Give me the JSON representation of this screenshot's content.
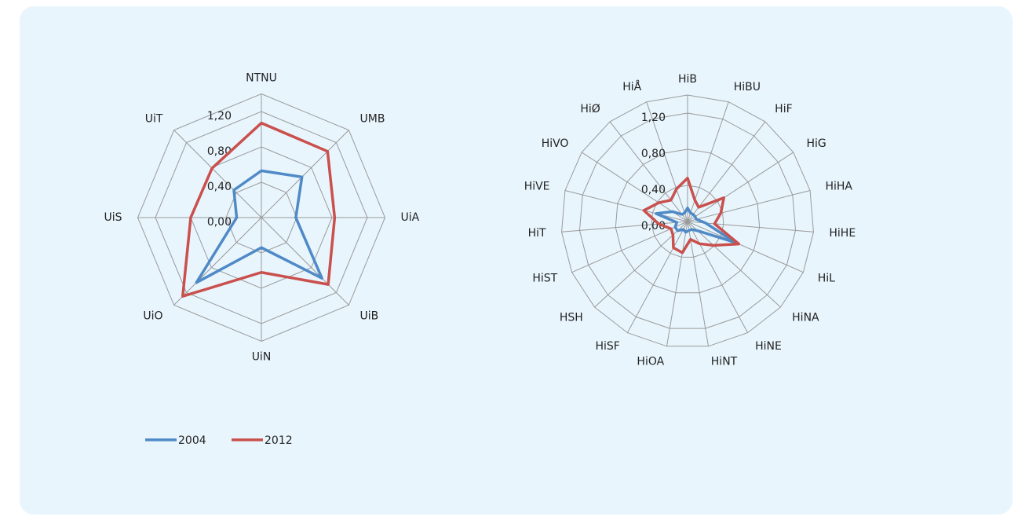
{
  "chart_data": [
    {
      "type": "radar",
      "categories": [
        "NTNU",
        "UMB",
        "UiA",
        "UiB",
        "UiN",
        "UiO",
        "UiS",
        "UiT"
      ],
      "ylim": [
        0,
        1.4
      ],
      "yticks": [
        {
          "value": 0,
          "label": "0,00"
        },
        {
          "value": 0.4,
          "label": "0,40"
        },
        {
          "value": 0.8,
          "label": "0,80"
        },
        {
          "value": 1.2,
          "label": "1,20"
        }
      ],
      "series": [
        {
          "name": "2004",
          "color": "#4f8ac6",
          "values": [
            0.53,
            0.65,
            0.39,
            0.97,
            0.34,
            1.04,
            0.28,
            0.44
          ]
        },
        {
          "name": "2012",
          "color": "#c9504d",
          "values": [
            1.07,
            1.06,
            0.83,
            1.07,
            0.62,
            1.26,
            0.8,
            0.79
          ]
        }
      ]
    },
    {
      "type": "radar",
      "categories": [
        "HiB",
        "HiBU",
        "HiF",
        "HiG",
        "HiHA",
        "HiHE",
        "HiL",
        "HiNA",
        "HiNE",
        "HiNT",
        "HiOA",
        "HiSF",
        "HSH",
        "HiST",
        "HiT",
        "HiVE",
        "HiVO",
        "HiØ",
        "HiÅ"
      ],
      "ylim": [
        0,
        1.4
      ],
      "yticks": [
        {
          "value": 0,
          "label": "0,00"
        },
        {
          "value": 0.4,
          "label": "0,40"
        },
        {
          "value": 0.8,
          "label": "0,80"
        },
        {
          "value": 1.2,
          "label": "1,20"
        }
      ],
      "series": [
        {
          "color": "#4f8ac6",
          "values": [
            0.15,
            0.1,
            0.1,
            0.1,
            0.1,
            0.2,
            0.58,
            0.15,
            0.1,
            0.1,
            0.12,
            0.1,
            0.15,
            0.15,
            0.12,
            0.36,
            0.2,
            0.1,
            0.1
          ]
        },
        {
          "color": "#c9504d",
          "values": [
            0.48,
            0.25,
            0.2,
            0.48,
            0.38,
            0.3,
            0.62,
            0.39,
            0.28,
            0.2,
            0.35,
            0.33,
            0.22,
            0.2,
            0.32,
            0.5,
            0.38,
            0.3,
            0.38
          ]
        }
      ]
    }
  ]
}
